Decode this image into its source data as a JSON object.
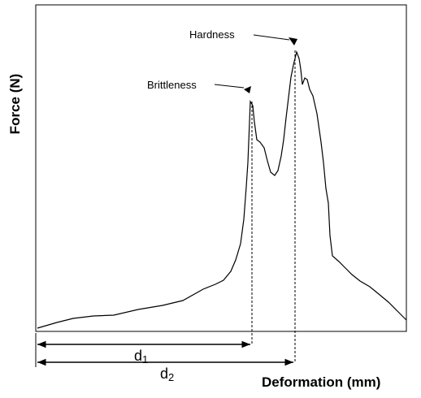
{
  "labels": {
    "hardness": "Hardness",
    "brittleness": "Brittleness",
    "y_axis": "Force (N)",
    "x_axis": "Deformation (mm)",
    "d1": {
      "base": "d",
      "sub": "1"
    },
    "d2": {
      "base": "d",
      "sub": "2"
    }
  }
}
